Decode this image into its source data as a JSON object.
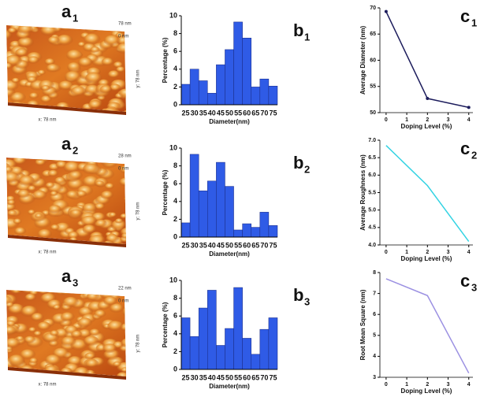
{
  "images": [
    {
      "label": "a",
      "sub": "1",
      "z_max": "78 nm",
      "z_min": "0 nm",
      "y_axis": "y: 78 nm",
      "x_axis": "x: 78 nm"
    },
    {
      "label": "a",
      "sub": "2",
      "z_max": "28 nm",
      "z_min": "0 nm",
      "y_axis": "y: 78 nm",
      "x_axis": "x: 78 nm"
    },
    {
      "label": "a",
      "sub": "3",
      "z_max": "22 nm",
      "z_min": "0 nm",
      "y_axis": "y: 78 nm",
      "x_axis": "x: 78 nm"
    }
  ],
  "chart_data": [
    {
      "type": "bar",
      "label": "b",
      "sub": "1",
      "x_label": "Diameter(nm)",
      "y_label": "Percentage (%)",
      "color": "#2f5be6",
      "categories": [
        "25",
        "30",
        "35",
        "40",
        "45",
        "50",
        "55",
        "60",
        "65",
        "70",
        "75"
      ],
      "values": [
        2.3,
        4.0,
        2.7,
        1.3,
        4.5,
        6.2,
        9.3,
        7.5,
        2.0,
        2.9,
        2.1
      ],
      "ylim": [
        0,
        10
      ],
      "yticks": [
        0,
        2,
        4,
        6,
        8,
        10
      ]
    },
    {
      "type": "bar",
      "label": "b",
      "sub": "2",
      "x_label": "Diameter(nm)",
      "y_label": "Percentage (%)",
      "color": "#2f5be6",
      "categories": [
        "25",
        "30",
        "35",
        "40",
        "45",
        "50",
        "55",
        "60",
        "65",
        "70",
        "75"
      ],
      "values": [
        1.6,
        9.3,
        5.2,
        6.3,
        8.4,
        5.7,
        0.8,
        1.5,
        1.1,
        2.8,
        1.3
      ],
      "ylim": [
        0,
        10
      ],
      "yticks": [
        0,
        2,
        4,
        6,
        8,
        10
      ]
    },
    {
      "type": "bar",
      "label": "b",
      "sub": "3",
      "x_label": "Diameter(nm)",
      "y_label": "Percentage (%)",
      "color": "#2f5be6",
      "categories": [
        "25",
        "30",
        "35",
        "40",
        "45",
        "50",
        "55",
        "60",
        "65",
        "70",
        "75"
      ],
      "values": [
        5.8,
        3.7,
        6.9,
        8.9,
        2.7,
        4.6,
        9.2,
        3.5,
        1.7,
        4.5,
        5.8
      ],
      "ylim": [
        0,
        10
      ],
      "yticks": [
        0,
        2,
        4,
        6,
        8,
        10
      ]
    },
    {
      "type": "line",
      "label": "c",
      "sub": "1",
      "x_label": "Doping Level (%)",
      "y_label": "Average Diameter (nm)",
      "color": "#1c1c5c",
      "markers": true,
      "x": [
        0,
        2,
        4
      ],
      "values": [
        69.3,
        52.7,
        51.0
      ],
      "xlim": [
        -0.3,
        4.2
      ],
      "xticks": [
        0,
        1,
        2,
        3,
        4
      ],
      "ylim": [
        50,
        70
      ],
      "yticks": [
        50,
        55,
        60,
        65,
        70
      ]
    },
    {
      "type": "line",
      "label": "c",
      "sub": "2",
      "x_label": "Doping Level (%)",
      "y_label": "Average Roughness (nm)",
      "color": "#33d3e3",
      "markers": false,
      "x": [
        0,
        2,
        4
      ],
      "values": [
        6.85,
        5.7,
        4.1
      ],
      "xlim": [
        -0.3,
        4.2
      ],
      "xticks": [
        0,
        1,
        2,
        3,
        4
      ],
      "ylim": [
        4,
        7
      ],
      "yticks": [
        {
          "value": 4,
          "label": "4.0"
        },
        4.5,
        {
          "value": 5,
          "label": "5.0"
        },
        5.5,
        {
          "value": 6,
          "label": "6.0"
        },
        6.5,
        {
          "value": 7,
          "label": "7.0"
        }
      ]
    },
    {
      "type": "line",
      "label": "c",
      "sub": "3",
      "x_label": "Doping Level (%)",
      "y_label": "Root Mean Square (nm)",
      "color": "#9b90e2",
      "markers": false,
      "x": [
        0,
        2,
        4
      ],
      "values": [
        7.7,
        6.9,
        3.2
      ],
      "xlim": [
        -0.3,
        4.2
      ],
      "xticks": [
        0,
        1,
        2,
        3,
        4
      ],
      "ylim": [
        3,
        8
      ],
      "yticks": [
        3,
        4,
        5,
        6,
        7,
        8
      ]
    }
  ]
}
